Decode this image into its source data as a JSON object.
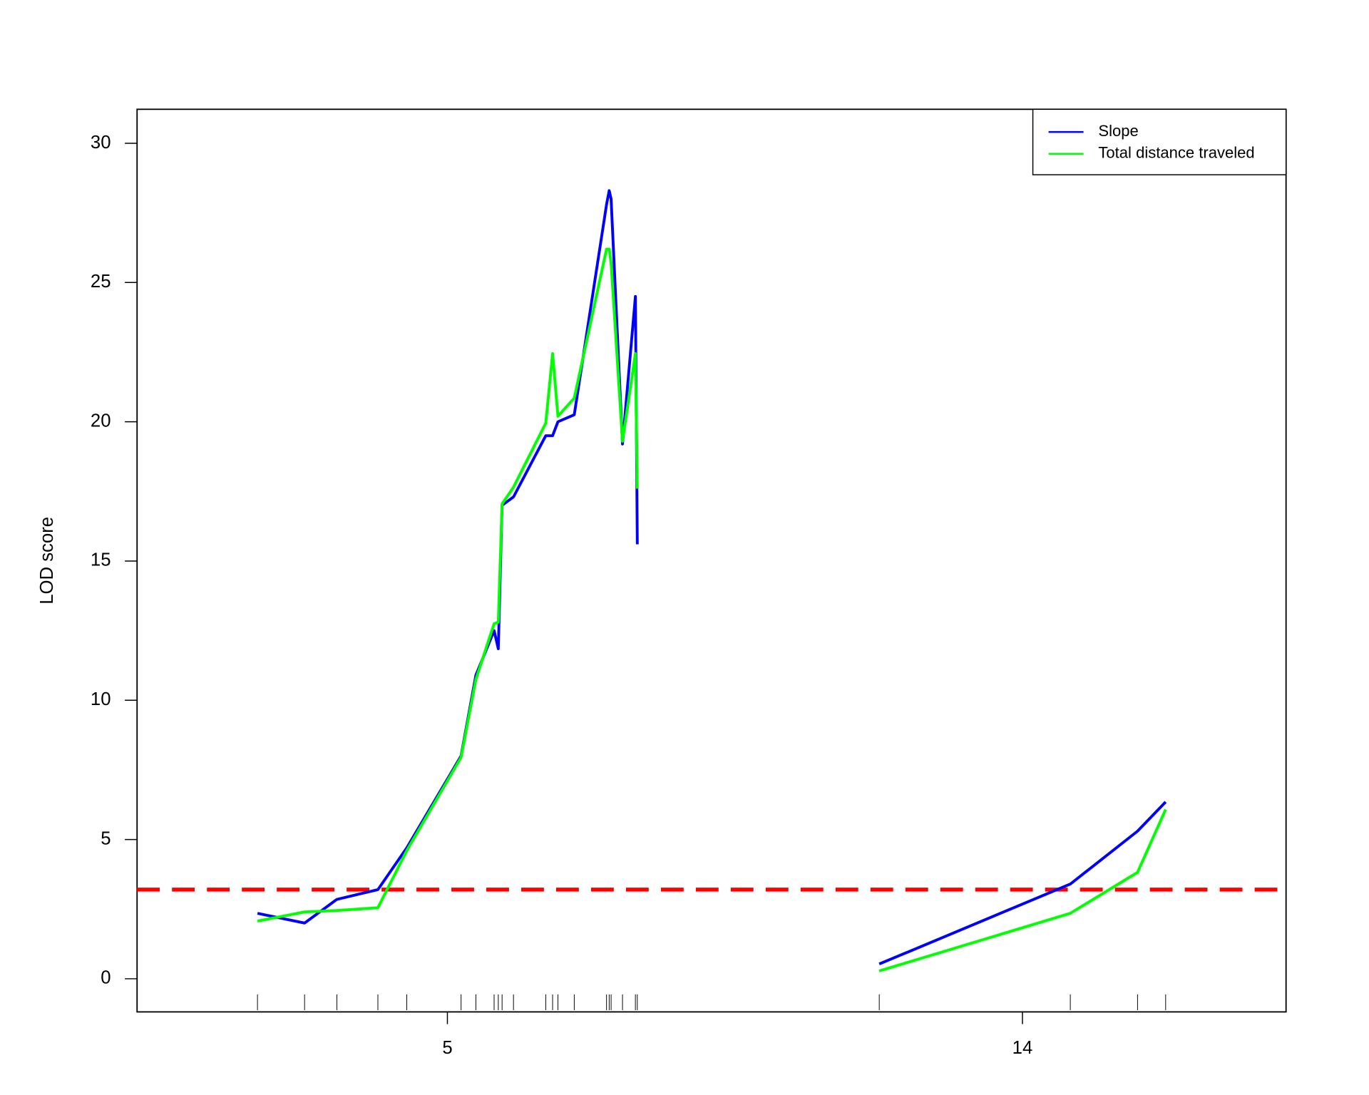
{
  "chart_data": {
    "type": "line",
    "ylabel": "LOD score",
    "ylim": [
      -1.19,
      31.22
    ],
    "yticks": [
      0,
      5,
      10,
      15,
      20,
      25,
      30
    ],
    "legend": "topright",
    "threshold": {
      "value": 3.2,
      "color": "#ff0000"
    },
    "chromosomes": [
      {
        "label": "5",
        "x": [
          0,
          12.4,
          20.9,
          31.7,
          39.3,
          53.6,
          57.5,
          62.3,
          63.4,
          64.4,
          67.4,
          75.9,
          77.7,
          79.1,
          83.4,
          91.9,
          92.6,
          93.1,
          96.1,
          99.5,
          100
        ]
      },
      {
        "label": "14",
        "x": [
          0,
          50.3,
          68.0,
          75.4
        ]
      }
    ],
    "series": [
      {
        "name": "Slope",
        "color": "#0000ff",
        "values": [
          [
            2.35,
            2.0,
            2.85,
            3.2,
            4.7,
            8.0,
            10.9,
            12.5,
            11.85,
            17.0,
            17.3,
            19.5,
            19.5,
            20.0,
            20.25,
            27.8,
            28.3,
            28.0,
            19.2,
            24.5,
            15.6
          ],
          [
            0.53,
            3.4,
            5.3,
            6.35
          ]
        ]
      },
      {
        "name": "Total distance traveled",
        "color": "#00ff00",
        "values": [
          [
            2.07,
            2.4,
            2.45,
            2.55,
            4.6,
            7.95,
            10.75,
            12.75,
            12.8,
            17.05,
            17.65,
            19.95,
            22.45,
            20.2,
            20.85,
            26.2,
            26.2,
            25.7,
            19.3,
            22.45,
            17.6
          ],
          [
            0.28,
            2.35,
            3.82,
            6.08
          ]
        ]
      }
    ]
  }
}
